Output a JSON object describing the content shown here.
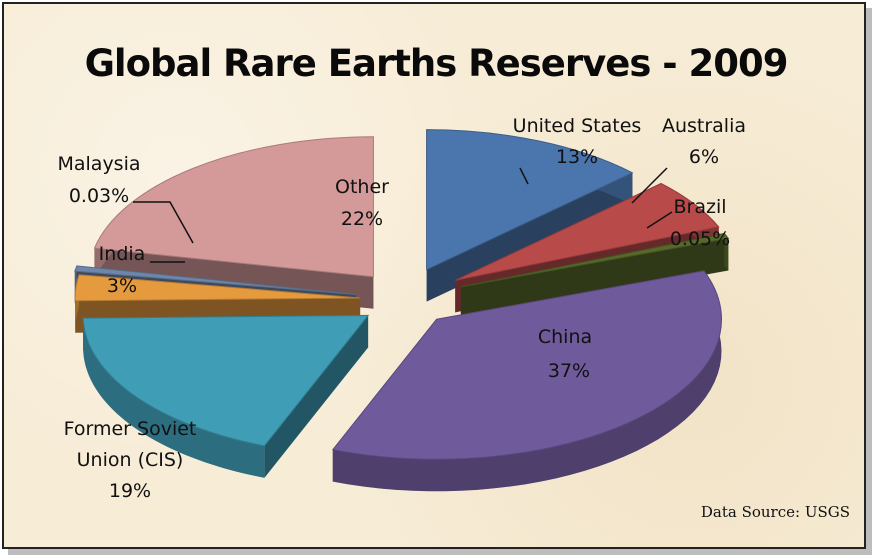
{
  "chart_data": {
    "type": "pie",
    "title": "Global Rare Earths Reserves - 2009",
    "slices": [
      {
        "label": "United States",
        "value_text": "13%",
        "value": 13,
        "color": "#4a76ad"
      },
      {
        "label": "Australia",
        "value_text": "6%",
        "value": 6,
        "color": "#b94a4a"
      },
      {
        "label": "Brazil",
        "value_text": "0.05%",
        "value": 0.05,
        "color": "#56682a"
      },
      {
        "label": "China",
        "value_text": "37%",
        "value": 37,
        "color": "#6f5a9c"
      },
      {
        "label": "Former Soviet Union (CIS)",
        "value_text": "19%",
        "value": 19,
        "color": "#3f9db5"
      },
      {
        "label": "India",
        "value_text": "3%",
        "value": 3,
        "color": "#e59a3e"
      },
      {
        "label": "Malaysia",
        "value_text": "0.03%",
        "value": 0.03,
        "color": "#6e86aa"
      },
      {
        "label": "Other",
        "value_text": "22%",
        "value": 22,
        "color": "#d49a9a"
      }
    ],
    "legend": "none",
    "style": "3d-exploded-pie"
  },
  "labels": {
    "us_1": "United States",
    "us_2": "13%",
    "au_1": "Australia",
    "au_2": "6%",
    "br_1": "Brazil",
    "br_2": "0.05%",
    "cn_1": "China",
    "cn_2": "37%",
    "fsu_1": "Former Soviet",
    "fsu_2": "Union (CIS)",
    "fsu_3": "19%",
    "in_1": "India",
    "in_2": "3%",
    "my_1": "Malaysia",
    "my_2": "0.03%",
    "ot_1": "Other",
    "ot_2": "22%"
  },
  "source": "Data Source: USGS"
}
